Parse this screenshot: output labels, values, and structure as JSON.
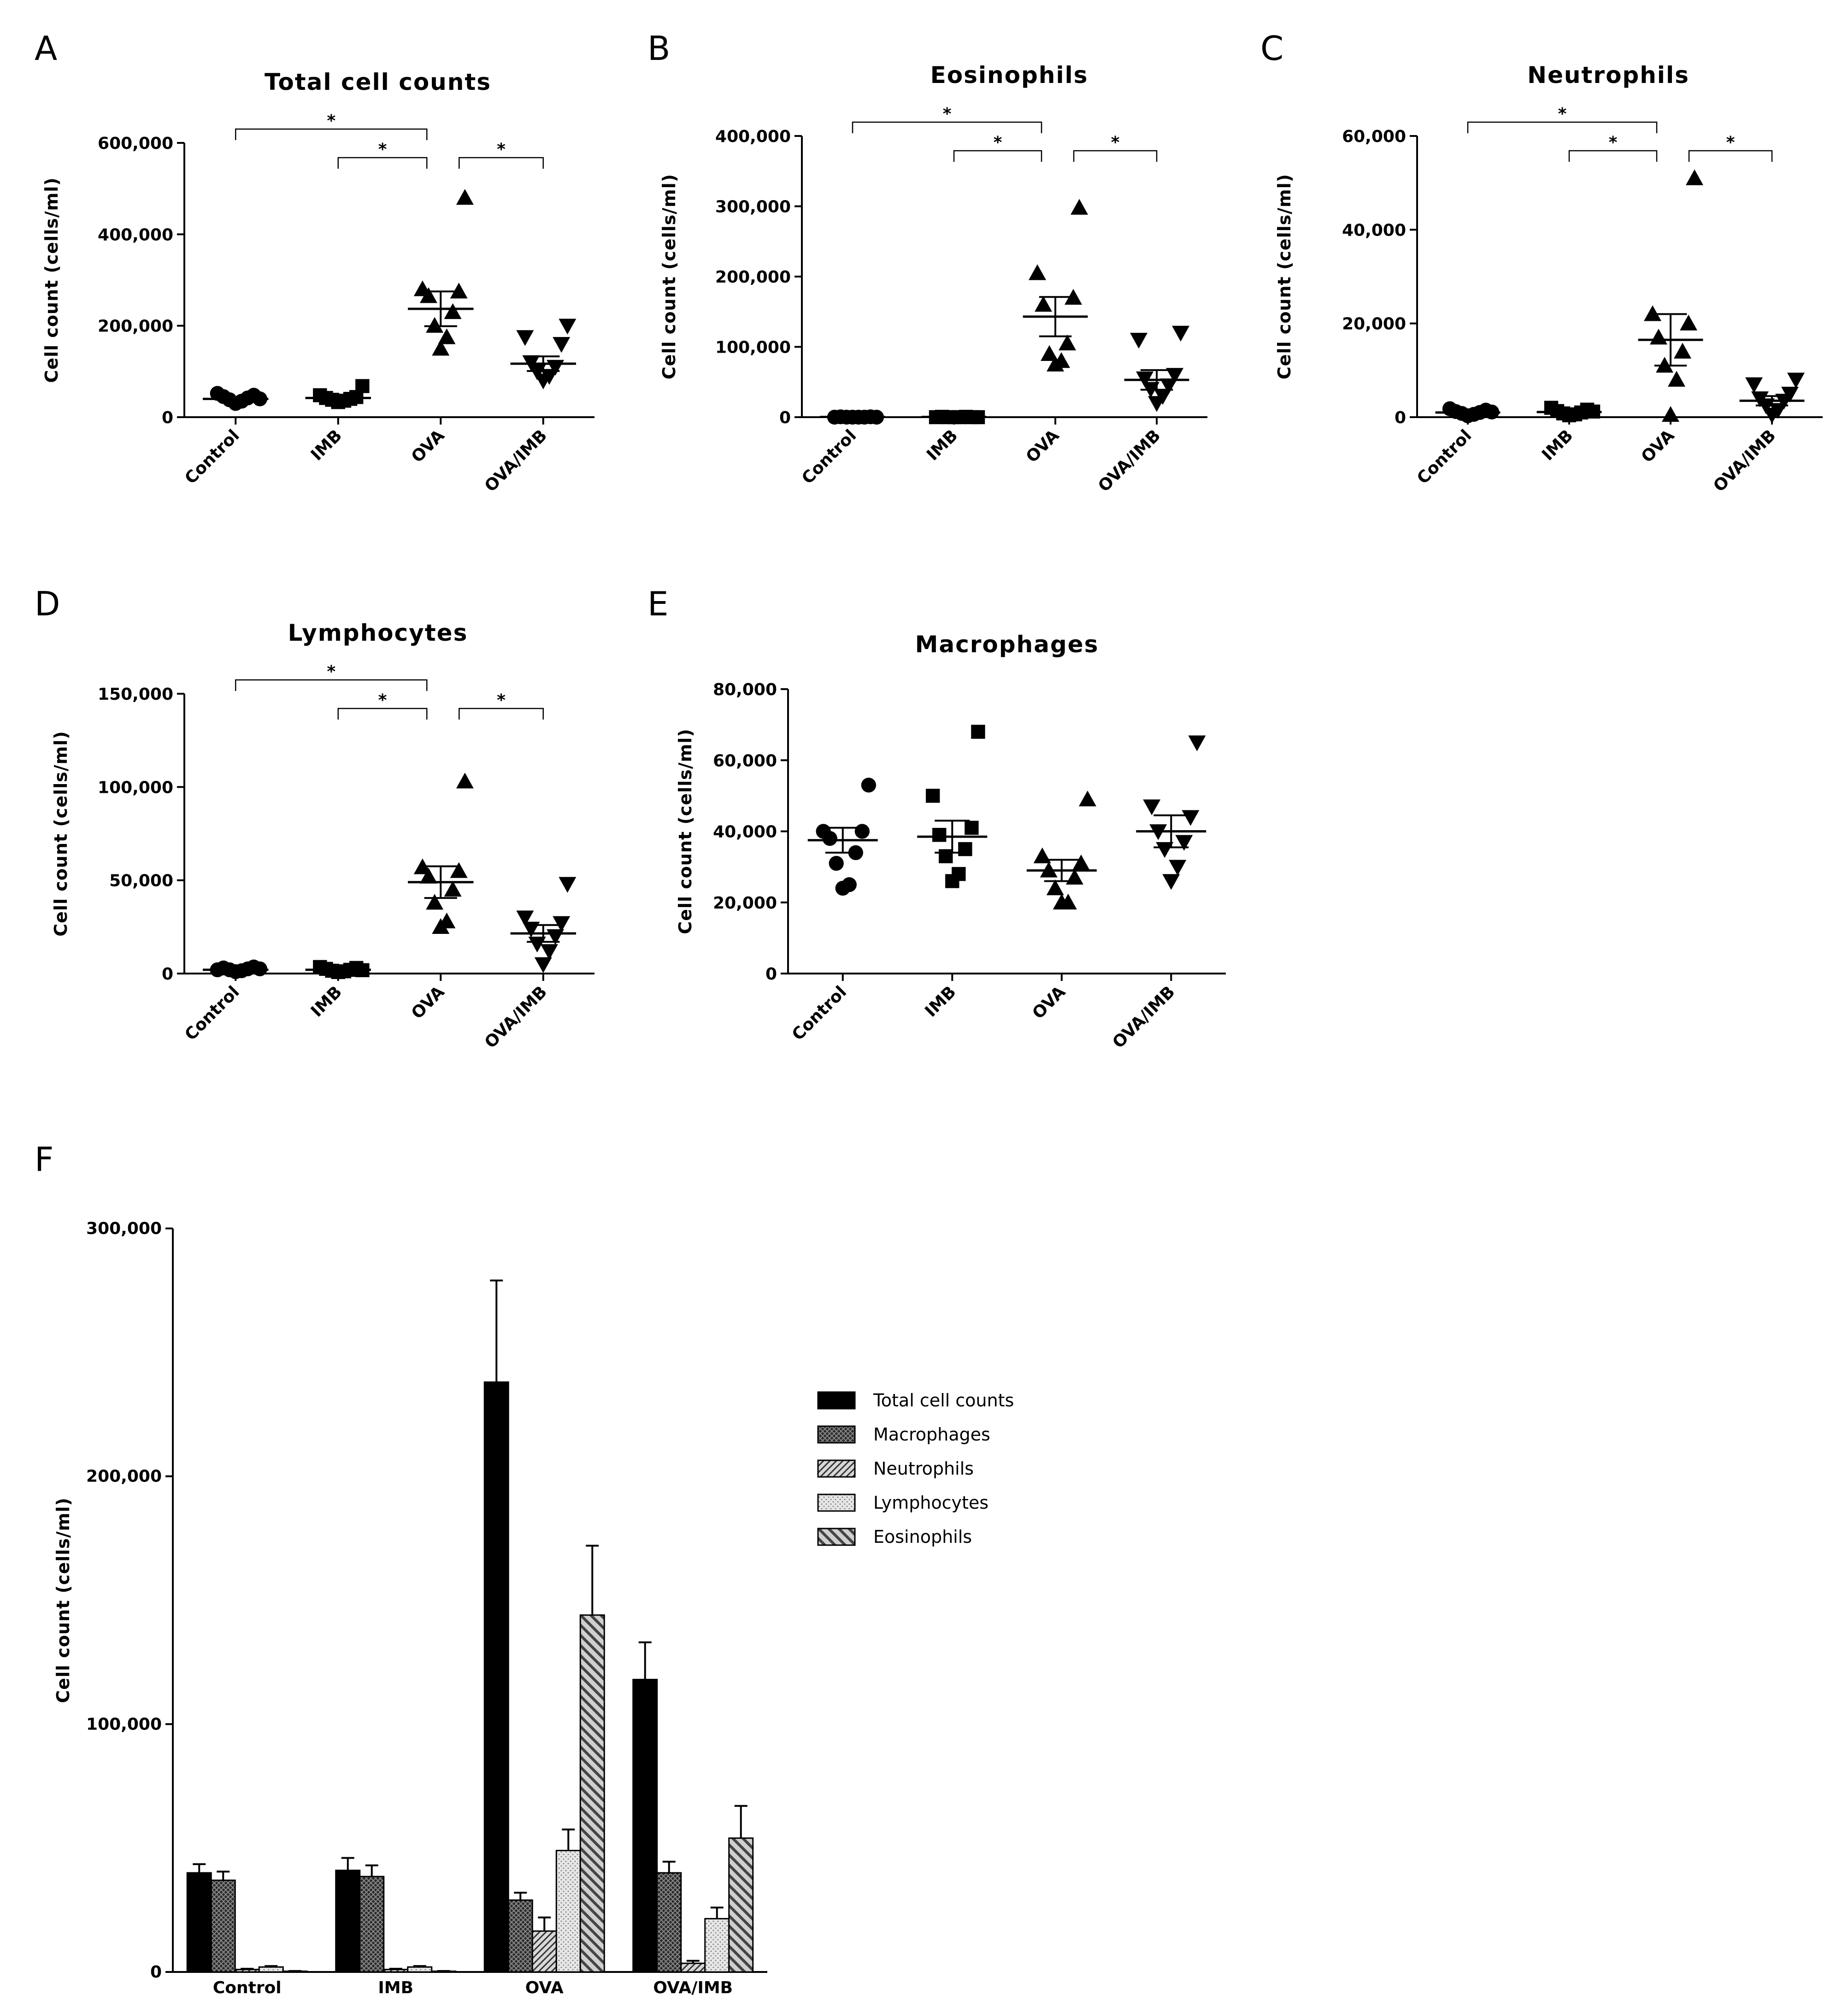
{
  "panels": {
    "A": "A",
    "B": "B",
    "C": "C",
    "D": "D",
    "E": "E",
    "F": "F"
  },
  "significance_mark": "*",
  "colors": {
    "ink": "#000000",
    "background": "#ffffff"
  },
  "chart_data": [
    {
      "id": "A",
      "type": "scatter",
      "title": "Total cell counts",
      "ylabel": "Cell count (cells/ml)",
      "categories": [
        "Control",
        "IMB",
        "OVA",
        "OVA/IMB"
      ],
      "ylim": [
        0,
        600000
      ],
      "yticks": [
        0,
        200000,
        400000,
        600000
      ],
      "ytick_labels": [
        "0",
        "200,000",
        "400,000",
        "600,000"
      ],
      "markers": [
        "circle",
        "square",
        "triangle-up",
        "triangle-down"
      ],
      "points": [
        [
          30000,
          35000,
          38000,
          42000,
          45000,
          48000,
          52000,
          40000
        ],
        [
          33000,
          36000,
          38000,
          40000,
          42000,
          44000,
          48000,
          68000
        ],
        [
          150000,
          175000,
          200000,
          230000,
          265000,
          275000,
          280000,
          480000
        ],
        [
          80000,
          90000,
          100000,
          110000,
          120000,
          160000,
          175000,
          200000
        ]
      ],
      "mean": [
        40000,
        42000,
        237000,
        117000
      ],
      "sem": [
        3000,
        4000,
        38000,
        16000
      ],
      "significance": [
        {
          "from": 0,
          "to": 2,
          "label": "*",
          "level": 3
        },
        {
          "from": 1,
          "to": 2,
          "label": "*",
          "level": 2
        },
        {
          "from": 2,
          "to": 3,
          "label": "*",
          "level": 2
        }
      ]
    },
    {
      "id": "B",
      "type": "scatter",
      "title": "Eosinophils",
      "ylabel": "Cell count (cells/ml)",
      "categories": [
        "Control",
        "IMB",
        "OVA",
        "OVA/IMB"
      ],
      "ylim": [
        0,
        400000
      ],
      "yticks": [
        0,
        100000,
        200000,
        300000,
        400000
      ],
      "ytick_labels": [
        "0",
        "100,000",
        "200,000",
        "300,000",
        "400,000"
      ],
      "markers": [
        "circle",
        "square",
        "triangle-up",
        "triangle-down"
      ],
      "points": [
        [
          0,
          0,
          0,
          0,
          500,
          500,
          0,
          0
        ],
        [
          0,
          0,
          0,
          500,
          500,
          0,
          0,
          0
        ],
        [
          75000,
          80000,
          90000,
          105000,
          160000,
          170000,
          205000,
          298000
        ],
        [
          20000,
          30000,
          40000,
          45000,
          55000,
          60000,
          110000,
          120000
        ]
      ],
      "mean": [
        300,
        300,
        143000,
        53000
      ],
      "sem": [
        200,
        200,
        28000,
        14000
      ],
      "significance": [
        {
          "from": 0,
          "to": 2,
          "label": "*",
          "level": 3
        },
        {
          "from": 1,
          "to": 2,
          "label": "*",
          "level": 2
        },
        {
          "from": 2,
          "to": 3,
          "label": "*",
          "level": 2
        }
      ]
    },
    {
      "id": "C",
      "type": "scatter",
      "title": "Neutrophils",
      "ylabel": "Cell count (cells/ml)",
      "categories": [
        "Control",
        "IMB",
        "OVA",
        "OVA/IMB"
      ],
      "ylim": [
        0,
        60000
      ],
      "yticks": [
        0,
        20000,
        40000,
        60000
      ],
      "ytick_labels": [
        "0",
        "20,000",
        "40,000",
        "60,000"
      ],
      "markers": [
        "circle",
        "square",
        "triangle-up",
        "triangle-down"
      ],
      "points": [
        [
          300,
          600,
          800,
          1000,
          1200,
          1500,
          1800,
          1100
        ],
        [
          400,
          600,
          800,
          1000,
          1300,
          1600,
          2000,
          1200
        ],
        [
          500,
          8000,
          11000,
          14000,
          17000,
          20000,
          22000,
          51000
        ],
        [
          500,
          1500,
          2500,
          3500,
          4000,
          5000,
          7000,
          8000
        ]
      ],
      "mean": [
        1000,
        1100,
        16500,
        3500
      ],
      "sem": [
        200,
        200,
        5500,
        1000
      ],
      "significance": [
        {
          "from": 0,
          "to": 2,
          "label": "*",
          "level": 3
        },
        {
          "from": 1,
          "to": 2,
          "label": "*",
          "level": 2
        },
        {
          "from": 2,
          "to": 3,
          "label": "*",
          "level": 2
        }
      ]
    },
    {
      "id": "D",
      "type": "scatter",
      "title": "Lymphocytes",
      "ylabel": "Cell count (cells/ml)",
      "categories": [
        "Control",
        "IMB",
        "OVA",
        "OVA/IMB"
      ],
      "ylim": [
        0,
        150000
      ],
      "yticks": [
        0,
        50000,
        100000,
        150000
      ],
      "ytick_labels": [
        "0",
        "50,000",
        "100,000",
        "150,000"
      ],
      "markers": [
        "circle",
        "square",
        "triangle-up",
        "triangle-down"
      ],
      "points": [
        [
          1000,
          1500,
          2000,
          2500,
          3000,
          3500,
          2000,
          2500
        ],
        [
          800,
          1200,
          1500,
          2000,
          2500,
          3000,
          3500,
          1800
        ],
        [
          25000,
          28000,
          38000,
          45000,
          52000,
          55000,
          57000,
          103000
        ],
        [
          5000,
          12000,
          16000,
          20000,
          24000,
          27000,
          30000,
          48000
        ]
      ],
      "mean": [
        2000,
        2000,
        49000,
        21500
      ],
      "sem": [
        300,
        300,
        8500,
        4500
      ],
      "significance": [
        {
          "from": 0,
          "to": 2,
          "label": "*",
          "level": 3
        },
        {
          "from": 1,
          "to": 2,
          "label": "*",
          "level": 2
        },
        {
          "from": 2,
          "to": 3,
          "label": "*",
          "level": 2
        }
      ]
    },
    {
      "id": "E",
      "type": "scatter",
      "title": "Macrophages",
      "ylabel": "Cell count (cells/ml)",
      "categories": [
        "Control",
        "IMB",
        "OVA",
        "OVA/IMB"
      ],
      "ylim": [
        0,
        80000
      ],
      "yticks": [
        0,
        20000,
        40000,
        60000,
        80000
      ],
      "ytick_labels": [
        "0",
        "20,000",
        "40,000",
        "60,000",
        "80,000"
      ],
      "markers": [
        "circle",
        "square",
        "triangle-up",
        "triangle-down"
      ],
      "points": [
        [
          24000,
          25000,
          31000,
          34000,
          38000,
          40000,
          40000,
          53000
        ],
        [
          26000,
          28000,
          33000,
          35000,
          39000,
          41000,
          50000,
          68000
        ],
        [
          20000,
          20000,
          24000,
          27000,
          29000,
          31000,
          33000,
          49000
        ],
        [
          26000,
          30000,
          35000,
          37000,
          40000,
          44000,
          47000,
          65000
        ]
      ],
      "mean": [
        37500,
        38500,
        29000,
        40000
      ],
      "sem": [
        3500,
        4500,
        3000,
        4500
      ],
      "significance": []
    },
    {
      "id": "F",
      "type": "bar",
      "title": "",
      "ylabel": "Cell count (cells/ml)",
      "categories": [
        "Control",
        "IMB",
        "OVA",
        "OVA/IMB"
      ],
      "ylim": [
        0,
        300000
      ],
      "yticks": [
        0,
        100000,
        200000,
        300000
      ],
      "ytick_labels": [
        "0",
        "100,000",
        "200,000",
        "300,000"
      ],
      "legend_position": "right",
      "series": [
        {
          "name": "Total cell counts",
          "pattern": "solid",
          "values": [
            40000,
            41000,
            238000,
            118000
          ],
          "err": [
            3500,
            5000,
            41000,
            15000
          ]
        },
        {
          "name": "Macrophages",
          "pattern": "crosshatch",
          "values": [
            37000,
            38500,
            29000,
            40000
          ],
          "err": [
            3500,
            4500,
            3000,
            4500
          ]
        },
        {
          "name": "Neutrophils",
          "pattern": "diag",
          "values": [
            1000,
            1000,
            16500,
            3500
          ],
          "err": [
            300,
            300,
            5500,
            1000
          ]
        },
        {
          "name": "Lymphocytes",
          "pattern": "dots",
          "values": [
            2000,
            2000,
            49000,
            21500
          ],
          "err": [
            400,
            400,
            8500,
            4500
          ]
        },
        {
          "name": "Eosinophils",
          "pattern": "backdiag",
          "values": [
            300,
            300,
            144000,
            54000
          ],
          "err": [
            100,
            100,
            28000,
            13000
          ]
        }
      ]
    }
  ]
}
